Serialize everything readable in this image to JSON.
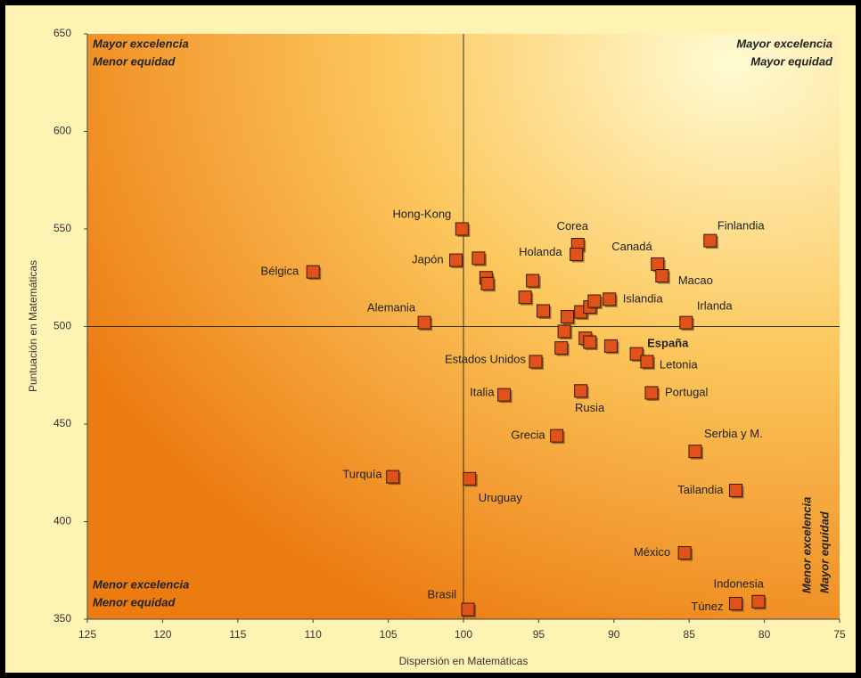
{
  "chart_data": {
    "type": "scatter",
    "xlabel": "Dispersión en Matemáticas",
    "ylabel": "Puntuación en Matemáticas",
    "xlim": [
      125,
      75
    ],
    "xticks": [
      125,
      120,
      115,
      110,
      105,
      100,
      95,
      90,
      85,
      80,
      75
    ],
    "ylim": [
      350,
      650
    ],
    "yticks": [
      350,
      400,
      450,
      500,
      550,
      600,
      650
    ],
    "reference_lines": {
      "x": 100,
      "y": 500
    },
    "color": "#e0521a",
    "annotations": [
      [
        "Mayor excelencia",
        "Menor equidad"
      ],
      [
        "Mayor excelencia",
        "Mayor equidad"
      ],
      [
        "Menor excelencia",
        "Menor equidad"
      ],
      [
        "Menor excelencia",
        "Mayor equidad"
      ]
    ],
    "labels": [
      "Hong-Kong",
      "Japón",
      "Bélgica",
      "Alemania",
      "Corea",
      "Holanda",
      null,
      null,
      null,
      null,
      null,
      null,
      null,
      null,
      null,
      null,
      null,
      null,
      "Islandia",
      null,
      null,
      null,
      "Finlandia",
      "Canadá",
      "Macao",
      "Irlanda",
      "España",
      "Letonia",
      "Portugal",
      "Estados Unidos",
      "Italia",
      "Rusia",
      "Grecia",
      "Serbia y M.",
      "Turquía",
      "Uruguay",
      "Tailandia",
      "México",
      "Brasil",
      "Túnez",
      "Indonesia"
    ],
    "x": [
      100.1,
      100.5,
      110,
      102.6,
      92.4,
      92.5,
      99,
      98.5,
      98.4,
      95.4,
      95.9,
      94.7,
      93.1,
      93.3,
      93.5,
      92.2,
      91.6,
      91.3,
      90.3,
      91.9,
      91.6,
      90.2,
      83.6,
      87.1,
      86.8,
      85.2,
      88.5,
      87.8,
      87.5,
      95.2,
      97.3,
      92.2,
      93.8,
      84.6,
      104.7,
      99.6,
      81.9,
      85.3,
      99.7,
      81.9,
      80.4
    ],
    "values": [
      550,
      534,
      528,
      502,
      542,
      537,
      535,
      525,
      522,
      523.5,
      515,
      508,
      505,
      497.5,
      489,
      507.5,
      510,
      513,
      514,
      494,
      492,
      490,
      544,
      532,
      526,
      502,
      486,
      482,
      466,
      482,
      465,
      467,
      444,
      436,
      423,
      422,
      416,
      384,
      355,
      358,
      359
    ]
  }
}
